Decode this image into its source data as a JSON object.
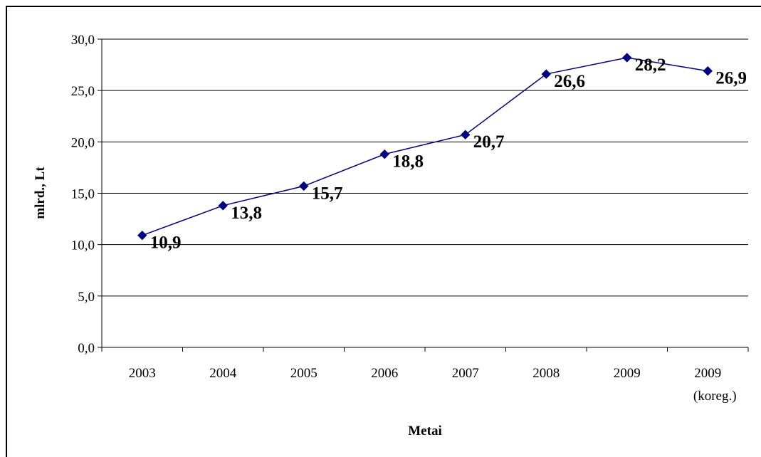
{
  "chart_data": {
    "type": "line",
    "title": "",
    "xlabel": "Metai",
    "ylabel": "mlrd., Lt",
    "categories": [
      [
        "2003"
      ],
      [
        "2004"
      ],
      [
        "2005"
      ],
      [
        "2006"
      ],
      [
        "2007"
      ],
      [
        "2008"
      ],
      [
        "2009"
      ],
      [
        "2009",
        "(koreg.)"
      ]
    ],
    "series": [
      {
        "values": [
          10.9,
          13.8,
          15.7,
          18.8,
          20.7,
          26.6,
          28.2,
          26.9
        ],
        "data_labels": [
          "10,9",
          "13,8",
          "15,7",
          "18,8",
          "20,7",
          "26,6",
          "28,2",
          "26,9"
        ],
        "color": "#000080",
        "marker": "diamond"
      }
    ],
    "y_ticks": [
      "0,0",
      "5,0",
      "10,0",
      "15,0",
      "20,0",
      "25,0",
      "30,0"
    ],
    "ylim": [
      0,
      30
    ],
    "grid": true,
    "legend": "none"
  }
}
